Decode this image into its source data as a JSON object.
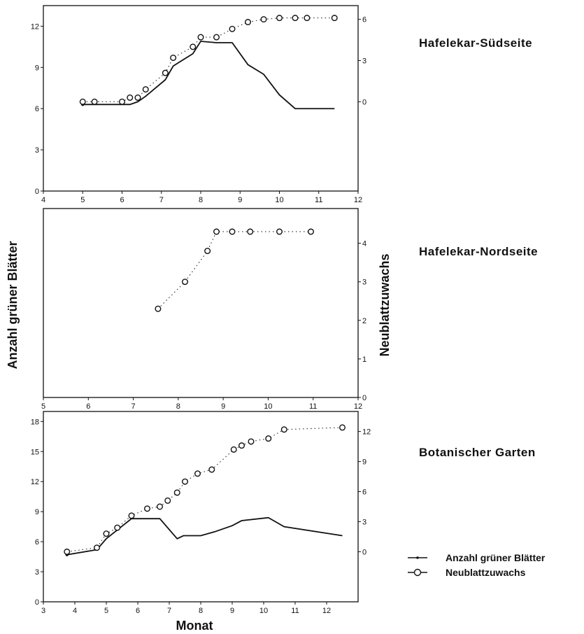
{
  "shared": {
    "ylabel_left": "Anzahl grüner Blätter",
    "ylabel_right": "Neublattzuwachs",
    "xlabel": "Monat"
  },
  "legend": {
    "line_label": "Anzahl grüner Blätter",
    "circle_label": "Neublattzuwachs",
    "placement": "bottom-right"
  },
  "chart_data": [
    {
      "type": "line",
      "panel_label": "Hafelekar-Südseite",
      "x_ticks": [
        4,
        5,
        6,
        7,
        8,
        9,
        10,
        11,
        12
      ],
      "xlim": [
        4,
        12
      ],
      "left_ticks": [
        0,
        3,
        6,
        9,
        12
      ],
      "left_ylim": [
        0,
        13.5
      ],
      "right_ticks": [
        0,
        3,
        6
      ],
      "right_ylim": [
        -6.5,
        7
      ],
      "series": [
        {
          "name": "Anzahl grüner Blätter",
          "axis": "left",
          "x": [
            5.0,
            5.3,
            6.0,
            6.2,
            6.4,
            6.6,
            7.1,
            7.3,
            7.8,
            8.0,
            8.4,
            8.8,
            9.2,
            9.6,
            10.0,
            10.4,
            11.4
          ],
          "y": [
            6.3,
            6.3,
            6.3,
            6.3,
            6.5,
            6.9,
            8.1,
            9.1,
            10.0,
            10.9,
            10.8,
            10.8,
            9.2,
            8.5,
            7.0,
            6.0,
            6.0
          ]
        },
        {
          "name": "Neublattzuwachs",
          "axis": "right",
          "x": [
            5.0,
            5.3,
            6.0,
            6.2,
            6.4,
            6.6,
            7.1,
            7.3,
            7.8,
            8.0,
            8.4,
            8.8,
            9.2,
            9.6,
            10.0,
            10.4,
            10.7,
            11.4
          ],
          "y": [
            0.0,
            0.0,
            0.0,
            0.3,
            0.3,
            0.9,
            2.1,
            3.2,
            4.0,
            4.7,
            4.7,
            5.3,
            5.8,
            6.0,
            6.1,
            6.1,
            6.1,
            6.1
          ]
        }
      ]
    },
    {
      "type": "line",
      "panel_label": "Hafelekar-Nordseite",
      "x_ticks": [
        5,
        6,
        7,
        8,
        9,
        10,
        11,
        12
      ],
      "xlim": [
        5,
        12
      ],
      "left_ticks": [],
      "right_ticks": [
        0,
        1,
        2,
        3,
        4
      ],
      "right_ylim": [
        0,
        4.9
      ],
      "series": [
        {
          "name": "Neublattzuwachs",
          "axis": "right",
          "x": [
            7.55,
            8.15,
            8.65,
            8.85,
            9.2,
            9.6,
            10.25,
            10.95
          ],
          "y": [
            2.3,
            3.0,
            3.8,
            4.3,
            4.3,
            4.3,
            4.3,
            4.3
          ]
        }
      ]
    },
    {
      "type": "line",
      "panel_label": "Botanischer Garten",
      "x_ticks": [
        3,
        4,
        5,
        6,
        7,
        8,
        9,
        10,
        11,
        12
      ],
      "xlim": [
        3,
        13
      ],
      "left_ticks": [
        0,
        3,
        6,
        9,
        12,
        15,
        18
      ],
      "left_ylim": [
        0,
        19
      ],
      "right_ticks": [
        0,
        3,
        6,
        9,
        12
      ],
      "right_ylim": [
        -5,
        14
      ],
      "series": [
        {
          "name": "Anzahl grüner Blätter",
          "axis": "left",
          "x": [
            3.75,
            4.7,
            5.0,
            5.8,
            6.7,
            7.25,
            7.45,
            8.0,
            8.45,
            9.0,
            9.3,
            10.15,
            10.65,
            12.5
          ],
          "y": [
            4.7,
            5.2,
            6.3,
            8.3,
            8.3,
            6.3,
            6.6,
            6.6,
            7.0,
            7.6,
            8.1,
            8.4,
            7.5,
            6.6
          ]
        },
        {
          "name": "Neublattzuwachs",
          "axis": "right",
          "x": [
            3.75,
            4.7,
            5.0,
            5.35,
            5.8,
            6.3,
            6.7,
            6.95,
            7.25,
            7.5,
            7.9,
            8.35,
            9.05,
            9.3,
            9.6,
            10.15,
            10.65,
            12.5
          ],
          "y": [
            0.0,
            0.4,
            1.8,
            2.4,
            3.6,
            4.3,
            4.5,
            5.1,
            5.9,
            7.0,
            7.8,
            8.2,
            10.2,
            10.6,
            11.0,
            11.3,
            12.2,
            12.4
          ]
        }
      ]
    }
  ]
}
